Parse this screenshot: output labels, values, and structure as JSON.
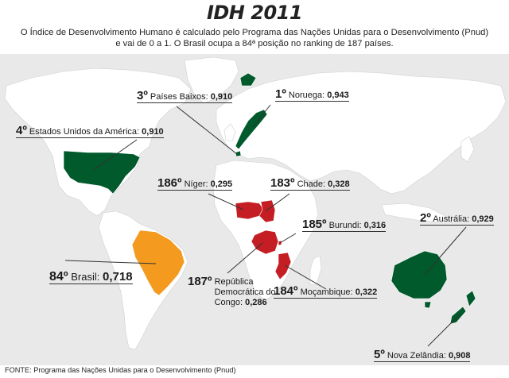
{
  "header": {
    "title": "IDH 2011",
    "subtitle_line1": "O Índice de Desenvolvimento Humano é calculado pelo Programa das Nações Unidas para o Desenvolvimento (Pnud)",
    "subtitle_line2": "e vai de 0 a 1. O Brasil ocupa a 84ª posição no ranking de 187 países."
  },
  "colors": {
    "ocean": "#e9e9e9",
    "land": "#ffffff",
    "top": "#005a2b",
    "brazil": "#f39a1f",
    "bottom": "#c41e24"
  },
  "countries": [
    {
      "id": "noruega",
      "rank": "1º",
      "name": "Noruega:",
      "value": "0,943"
    },
    {
      "id": "australia",
      "rank": "2º",
      "name": "Austrália:",
      "value": "0,929"
    },
    {
      "id": "paises-baixos",
      "rank": "3º",
      "name": "Países Baixos:",
      "value": "0,910"
    },
    {
      "id": "eua",
      "rank": "4º",
      "name": "Estados Unidos da América:",
      "value": "0,910"
    },
    {
      "id": "nova-zelandia",
      "rank": "5º",
      "name": "Nova Zelândia:",
      "value": "0,908"
    },
    {
      "id": "brasil",
      "rank": "84º",
      "name": "Brasil:",
      "value": "0,718"
    },
    {
      "id": "chade",
      "rank": "183º",
      "name": "Chade:",
      "value": "0,328"
    },
    {
      "id": "mocambique",
      "rank": "184º",
      "name": "Moçambique:",
      "value": "0,322"
    },
    {
      "id": "burundi",
      "rank": "185º",
      "name": "Burundi:",
      "value": "0,316"
    },
    {
      "id": "niger",
      "rank": "186º",
      "name": "Níger:",
      "value": "0,295"
    },
    {
      "id": "rdc",
      "rank": "187º",
      "name": "República Democrática do Congo:",
      "value": "0,286"
    }
  ],
  "footer": {
    "source": "FONTE: Programa das Nações Unidas para o Desenvolvimento (Pnud)"
  }
}
